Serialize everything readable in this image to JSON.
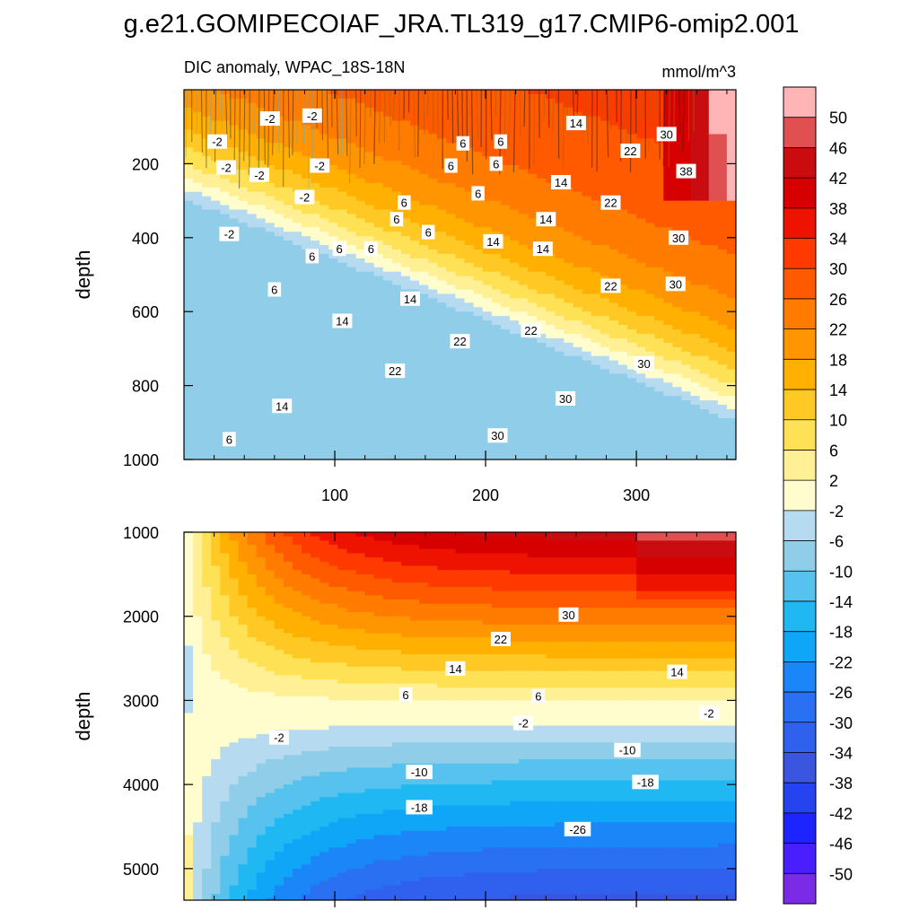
{
  "figure": {
    "title": "g.e21.GOMIPECOIAF_JRA.TL319_g17.CMIP6-omip2.001",
    "subtitle": "DIC anomaly, WPAC_18S-18N",
    "units": "mmol/m^3"
  },
  "chart_data": [
    {
      "type": "heatmap",
      "panel": "upper",
      "title": "DIC anomaly, WPAC_18S-18N",
      "units": "mmol/m^3",
      "xlabel": "",
      "ylabel": "depth",
      "xlim": [
        0,
        366
      ],
      "ylim": [
        1000,
        0
      ],
      "x_ticks": [
        100,
        200,
        300
      ],
      "y_ticks": [
        200,
        400,
        600,
        800,
        1000
      ],
      "contour_labels": [
        {
          "text": "-2",
          "x": 57,
          "y": 78
        },
        {
          "text": "-2",
          "x": 85,
          "y": 70
        },
        {
          "text": "-2",
          "x": 22,
          "y": 140
        },
        {
          "text": "-2",
          "x": 28,
          "y": 210
        },
        {
          "text": "-2",
          "x": 50,
          "y": 230
        },
        {
          "text": "-2",
          "x": 90,
          "y": 205
        },
        {
          "text": "-2",
          "x": 80,
          "y": 290
        },
        {
          "text": "-2",
          "x": 30,
          "y": 390
        },
        {
          "text": "14",
          "x": 260,
          "y": 90
        },
        {
          "text": "22",
          "x": 296,
          "y": 165
        },
        {
          "text": "30",
          "x": 320,
          "y": 120
        },
        {
          "text": "38",
          "x": 333,
          "y": 220
        },
        {
          "text": "6",
          "x": 185,
          "y": 145
        },
        {
          "text": "6",
          "x": 210,
          "y": 140
        },
        {
          "text": "6",
          "x": 177,
          "y": 205
        },
        {
          "text": "6",
          "x": 207,
          "y": 200
        },
        {
          "text": "6",
          "x": 195,
          "y": 280
        },
        {
          "text": "6",
          "x": 146,
          "y": 305
        },
        {
          "text": "6",
          "x": 141,
          "y": 350
        },
        {
          "text": "6",
          "x": 162,
          "y": 385
        },
        {
          "text": "6",
          "x": 85,
          "y": 450
        },
        {
          "text": "6",
          "x": 103,
          "y": 430
        },
        {
          "text": "6",
          "x": 124,
          "y": 430
        },
        {
          "text": "6",
          "x": 60,
          "y": 540
        },
        {
          "text": "6",
          "x": 30,
          "y": 945
        },
        {
          "text": "14",
          "x": 250,
          "y": 250
        },
        {
          "text": "14",
          "x": 240,
          "y": 350
        },
        {
          "text": "14",
          "x": 205,
          "y": 410
        },
        {
          "text": "14",
          "x": 238,
          "y": 430
        },
        {
          "text": "14",
          "x": 150,
          "y": 565
        },
        {
          "text": "14",
          "x": 105,
          "y": 625
        },
        {
          "text": "14",
          "x": 65,
          "y": 855
        },
        {
          "text": "22",
          "x": 283,
          "y": 305
        },
        {
          "text": "22",
          "x": 283,
          "y": 530
        },
        {
          "text": "22",
          "x": 230,
          "y": 650
        },
        {
          "text": "22",
          "x": 183,
          "y": 680
        },
        {
          "text": "22",
          "x": 140,
          "y": 760
        },
        {
          "text": "30",
          "x": 328,
          "y": 400
        },
        {
          "text": "30",
          "x": 326,
          "y": 525
        },
        {
          "text": "30",
          "x": 305,
          "y": 740
        },
        {
          "text": "30",
          "x": 253,
          "y": 835
        },
        {
          "text": "30",
          "x": 208,
          "y": 935
        }
      ]
    },
    {
      "type": "heatmap",
      "panel": "lower",
      "xlabel": "",
      "ylabel": "depth",
      "xlim": [
        0,
        366
      ],
      "ylim": [
        5375,
        1000
      ],
      "x_ticks": [
        100,
        200,
        300
      ],
      "y_ticks": [
        1000,
        2000,
        3000,
        4000,
        5000
      ],
      "contour_labels": [
        {
          "text": "30",
          "x": 255,
          "y": 1980
        },
        {
          "text": "22",
          "x": 210,
          "y": 2270
        },
        {
          "text": "14",
          "x": 180,
          "y": 2620
        },
        {
          "text": "14",
          "x": 327,
          "y": 2660
        },
        {
          "text": "6",
          "x": 147,
          "y": 2930
        },
        {
          "text": "6",
          "x": 235,
          "y": 2950
        },
        {
          "text": "-2",
          "x": 225,
          "y": 3270
        },
        {
          "text": "-2",
          "x": 348,
          "y": 3150
        },
        {
          "text": "-2",
          "x": 63,
          "y": 3440
        },
        {
          "text": "-10",
          "x": 294,
          "y": 3590
        },
        {
          "text": "-10",
          "x": 156,
          "y": 3850
        },
        {
          "text": "-18",
          "x": 306,
          "y": 3970
        },
        {
          "text": "-18",
          "x": 156,
          "y": 4270
        },
        {
          "text": "-26",
          "x": 261,
          "y": 4530
        }
      ]
    }
  ],
  "colorbar": {
    "levels": [
      -50,
      -46,
      -42,
      -38,
      -34,
      -30,
      -26,
      -22,
      -18,
      -14,
      -10,
      -6,
      -2,
      2,
      6,
      10,
      14,
      18,
      22,
      26,
      30,
      34,
      38,
      42,
      46,
      50
    ],
    "colors": [
      "#7b2ae6",
      "#4a1fff",
      "#1e24ff",
      "#2544f0",
      "#3a56e0",
      "#3060ee",
      "#2a70f2",
      "#1b86f8",
      "#10a6f8",
      "#1fb8f2",
      "#58c2ef",
      "#90cde8",
      "#b6dbf0",
      "#fffdcd",
      "#fff095",
      "#ffe155",
      "#ffc925",
      "#ffb000",
      "#ff9500",
      "#ff7c00",
      "#ff5a00",
      "#ff3a00",
      "#ee1200",
      "#d70000",
      "#c80c10",
      "#e15050",
      "#ffb4b6"
    ]
  }
}
